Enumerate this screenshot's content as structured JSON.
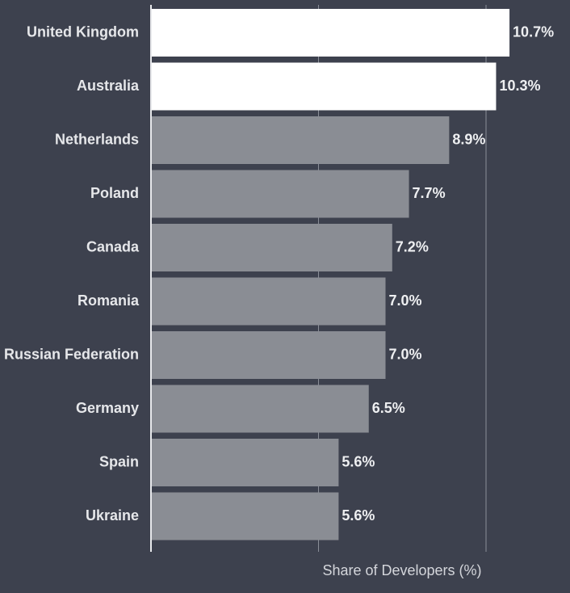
{
  "chart_data": {
    "type": "bar",
    "orientation": "horizontal",
    "categories": [
      "United Kingdom",
      "Australia",
      "Netherlands",
      "Poland",
      "Canada",
      "Romania",
      "Russian Federation",
      "Germany",
      "Spain",
      "Ukraine"
    ],
    "values": [
      10.7,
      10.3,
      8.9,
      7.7,
      7.2,
      7.0,
      7.0,
      6.5,
      5.6,
      5.6
    ],
    "value_labels": [
      "10.7%",
      "10.3%",
      "8.9%",
      "7.7%",
      "7.2%",
      "7.0%",
      "7.0%",
      "6.5%",
      "5.6%",
      "5.6%"
    ],
    "xlabel": "Share of Developers (%)",
    "ylabel": "",
    "title": "",
    "xlim": [
      0,
      12
    ],
    "gridlines_at": [
      5,
      10
    ],
    "grid": true,
    "colors": {
      "background": "#3d414e",
      "highlight_bar": "#ffffff",
      "default_bar": "#8a8d94",
      "gridline": "#8a8e98",
      "axis": "#e8e9ec"
    },
    "highlighted": [
      "United Kingdom",
      "Australia"
    ]
  }
}
